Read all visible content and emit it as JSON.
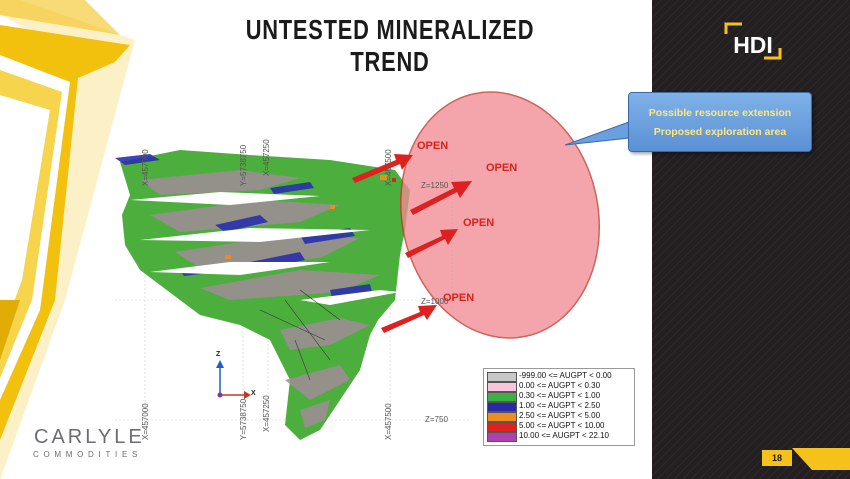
{
  "slide": {
    "title": "UNTESTED MINERALIZED TREND",
    "logo_text": "HDI",
    "brand_name": "CARLYLE",
    "brand_subtitle": "COMMODITIES",
    "page_number": "18",
    "accent_color": "#f4c21a",
    "dark_panel_color": "#231f20"
  },
  "callout": {
    "line1": "Possible resource extension",
    "line2": "Proposed exploration area",
    "color": "#6a9fe0"
  },
  "map": {
    "open_labels": [
      "OPEN",
      "OPEN",
      "OPEN",
      "OPEN"
    ],
    "level_labels": [
      "Z=1250",
      "Z=1000",
      "Z=750"
    ],
    "top_grid_labels": [
      "X=457000",
      "Y=5738750",
      "X=457250",
      "X=457500"
    ],
    "bottom_grid_labels": [
      "X=457000",
      "Y=5738750",
      "X=457250",
      "X=457500"
    ],
    "axis_z": "Z",
    "axis_x": "X",
    "ellipse_color": "#f28c95"
  },
  "legend": {
    "items": [
      {
        "label": "-999.00 <= AUGPT < 0.00",
        "color": "#c8c8c8"
      },
      {
        "label": "0.00 <= AUGPT < 0.30",
        "color": "#f7c6de"
      },
      {
        "label": "0.30 <= AUGPT < 1.00",
        "color": "#3cb043"
      },
      {
        "label": "1.00 <= AUGPT < 2.50",
        "color": "#2a2aa8"
      },
      {
        "label": "2.50 <= AUGPT < 5.00",
        "color": "#f08c1e"
      },
      {
        "label": "5.00 <= AUGPT < 10.00",
        "color": "#e02020"
      },
      {
        "label": "10.00 <= AUGPT < 22.10",
        "color": "#b040b0"
      }
    ]
  }
}
